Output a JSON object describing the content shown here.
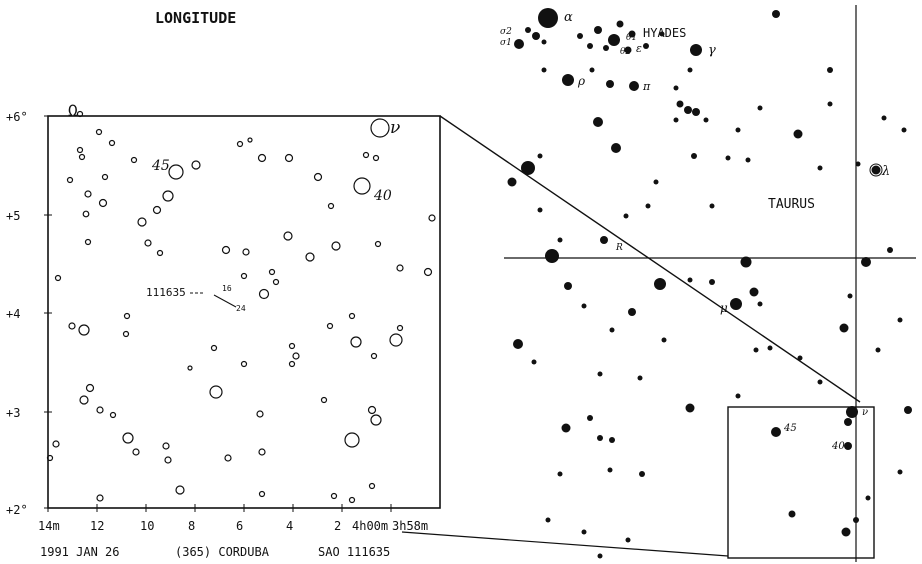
{
  "chart_data": {
    "type": "diagram",
    "header": "LONGITUDE",
    "footer": {
      "date": "1991 JAN 26",
      "observer": "(365) CORDUBA",
      "star": "SAO 111635"
    },
    "y_ticks": [
      "+6°",
      "+5",
      "+4",
      "+3",
      "+2°"
    ],
    "x_ticks": [
      "14m",
      "12",
      "10",
      "8",
      "6",
      "4",
      "2",
      "4h00m",
      "3h58m"
    ],
    "inset_labels": {
      "star_id": "111635",
      "mark_16": "16",
      "mark_24": "24",
      "n45": "45",
      "n40": "40",
      "nu": "ν",
      "omega": "Ω"
    },
    "wide_labels": {
      "hyades": "HYADES",
      "taurus": "TAURUS",
      "alpha": "α",
      "sigma1": "σ1",
      "sigma2": "σ2",
      "theta": "θ1",
      "theta2": "θ2",
      "epsilon": "ε",
      "gamma": "γ",
      "rho": "ρ",
      "pi": "π",
      "lambda": "λ",
      "mu": "μ",
      "nu": "ν",
      "n45": "45",
      "n40": "40",
      "r": "R"
    }
  }
}
